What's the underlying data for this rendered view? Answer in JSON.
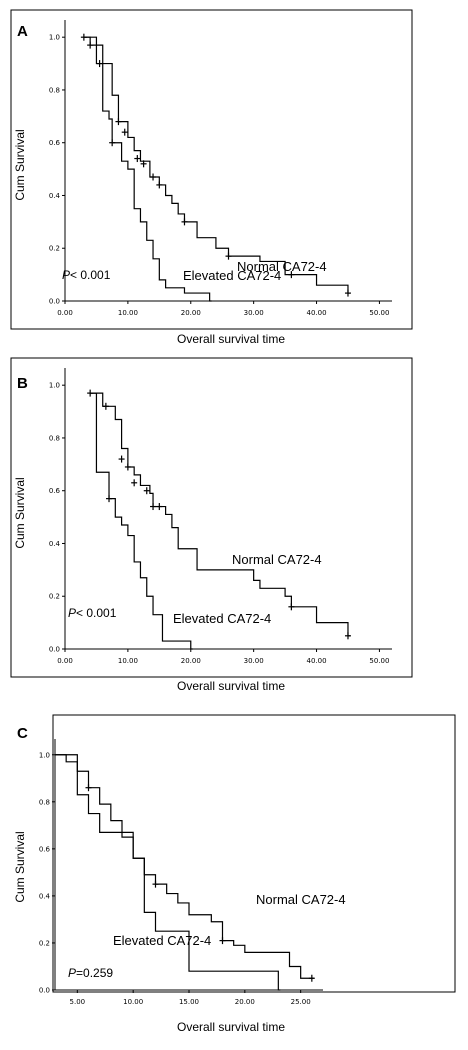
{
  "chart_data": [
    {
      "type": "line",
      "panel_label": "A",
      "xlabel": "Overall survival time",
      "ylabel": "Cum Survival",
      "xlim": [
        0,
        52
      ],
      "ylim": [
        0,
        1.05
      ],
      "x_ticks": [
        0,
        10,
        20,
        30,
        40,
        50
      ],
      "x_tick_labels": [
        "0.00",
        "10.00",
        "20.00",
        "30.00",
        "40.00",
        "50.00"
      ],
      "y_ticks": [
        0,
        0.2,
        0.4,
        0.6,
        0.8,
        1.0
      ],
      "y_tick_labels": [
        "0.0",
        "0.2",
        "0.4",
        "0.6",
        "0.8",
        "1.0"
      ],
      "p_value": {
        "italic": "P",
        "text": "< 0.001"
      },
      "series": [
        {
          "name": "Normal CA72-4",
          "steps": [
            [
              3,
              1.0
            ],
            [
              4,
              0.97
            ],
            [
              6,
              0.9
            ],
            [
              7.5,
              0.78
            ],
            [
              8.5,
              0.68
            ],
            [
              10,
              0.62
            ],
            [
              11,
              0.57
            ],
            [
              12,
              0.53
            ],
            [
              13.5,
              0.47
            ],
            [
              15,
              0.44
            ],
            [
              16,
              0.4
            ],
            [
              17,
              0.37
            ],
            [
              18,
              0.33
            ],
            [
              19,
              0.3
            ],
            [
              21,
              0.24
            ],
            [
              24,
              0.2
            ],
            [
              26,
              0.17
            ],
            [
              31,
              0.15
            ],
            [
              35,
              0.1
            ],
            [
              40,
              0.06
            ],
            [
              45,
              0.03
            ]
          ],
          "censored": [
            [
              3,
              1.0
            ],
            [
              5.5,
              0.9
            ],
            [
              8.5,
              0.68
            ],
            [
              9.5,
              0.64
            ],
            [
              11.5,
              0.54
            ],
            [
              12.5,
              0.52
            ],
            [
              14,
              0.47
            ],
            [
              15,
              0.44
            ],
            [
              19,
              0.3
            ],
            [
              26,
              0.17
            ],
            [
              36,
              0.1
            ],
            [
              45,
              0.03
            ]
          ]
        },
        {
          "name": "Elevated CA72-4",
          "steps": [
            [
              3,
              1.0
            ],
            [
              5,
              0.9
            ],
            [
              6,
              0.72
            ],
            [
              7,
              0.69
            ],
            [
              7.5,
              0.6
            ],
            [
              9,
              0.53
            ],
            [
              10,
              0.5
            ],
            [
              11,
              0.35
            ],
            [
              12,
              0.3
            ],
            [
              13,
              0.23
            ],
            [
              14,
              0.16
            ],
            [
              15,
              0.08
            ],
            [
              16,
              0.05
            ],
            [
              19,
              0.03
            ],
            [
              23,
              0.0
            ]
          ],
          "censored": [
            [
              4,
              0.97
            ],
            [
              7.5,
              0.6
            ]
          ]
        }
      ]
    },
    {
      "type": "line",
      "panel_label": "B",
      "xlabel": "Overall survival time",
      "ylabel": "Cum Survival",
      "xlim": [
        0,
        52
      ],
      "ylim": [
        0,
        1.05
      ],
      "x_ticks": [
        0,
        10,
        20,
        30,
        40,
        50
      ],
      "x_tick_labels": [
        "0.00",
        "10.00",
        "20.00",
        "30.00",
        "40.00",
        "50.00"
      ],
      "y_ticks": [
        0,
        0.2,
        0.4,
        0.6,
        0.8,
        1.0
      ],
      "y_tick_labels": [
        "0.0",
        "0.2",
        "0.4",
        "0.6",
        "0.8",
        "1.0"
      ],
      "p_value": {
        "italic": "P",
        "text": "< 0.001"
      },
      "series": [
        {
          "name": "Normal CA72-4",
          "steps": [
            [
              4,
              0.97
            ],
            [
              6,
              0.92
            ],
            [
              8,
              0.87
            ],
            [
              9,
              0.76
            ],
            [
              10,
              0.69
            ],
            [
              11,
              0.66
            ],
            [
              12,
              0.62
            ],
            [
              13.5,
              0.59
            ],
            [
              14,
              0.54
            ],
            [
              16,
              0.51
            ],
            [
              17,
              0.46
            ],
            [
              18,
              0.38
            ],
            [
              21,
              0.3
            ],
            [
              30,
              0.26
            ],
            [
              31,
              0.23
            ],
            [
              35,
              0.2
            ],
            [
              36,
              0.16
            ],
            [
              40,
              0.1
            ],
            [
              45,
              0.05
            ]
          ],
          "censored": [
            [
              4,
              0.97
            ],
            [
              6.5,
              0.92
            ],
            [
              9,
              0.72
            ],
            [
              10,
              0.69
            ],
            [
              11,
              0.63
            ],
            [
              13,
              0.6
            ],
            [
              14,
              0.54
            ],
            [
              15,
              0.54
            ],
            [
              36,
              0.16
            ],
            [
              45,
              0.05
            ]
          ]
        },
        {
          "name": "Elevated CA72-4",
          "steps": [
            [
              4,
              0.97
            ],
            [
              5,
              0.67
            ],
            [
              7,
              0.57
            ],
            [
              8,
              0.5
            ],
            [
              9,
              0.47
            ],
            [
              10,
              0.43
            ],
            [
              11,
              0.33
            ],
            [
              12,
              0.27
            ],
            [
              13,
              0.2
            ],
            [
              14,
              0.13
            ],
            [
              15.5,
              0.03
            ],
            [
              20,
              0.0
            ]
          ],
          "censored": [
            [
              7,
              0.57
            ]
          ]
        }
      ]
    },
    {
      "type": "line",
      "panel_label": "C",
      "xlabel": "Overall survival time",
      "ylabel": "Cum Survival",
      "xlim": [
        3,
        27
      ],
      "ylim": [
        0,
        1.05
      ],
      "x_ticks": [
        5,
        10,
        15,
        20,
        25
      ],
      "x_tick_labels": [
        "5.00",
        "10.00",
        "15.00",
        "20.00",
        "25.00"
      ],
      "y_ticks": [
        0,
        0.2,
        0.4,
        0.6,
        0.8,
        1.0
      ],
      "y_tick_labels": [
        "0.0",
        "0.2",
        "0.4",
        "0.6",
        "0.8",
        "1.0"
      ],
      "p_value": {
        "italic": "P",
        "text": "=0.259"
      },
      "series": [
        {
          "name": "Normal CA72-4",
          "steps": [
            [
              3,
              1.0
            ],
            [
              4,
              0.97
            ],
            [
              5,
              0.93
            ],
            [
              6,
              0.86
            ],
            [
              7,
              0.79
            ],
            [
              8,
              0.72
            ],
            [
              9,
              0.65
            ],
            [
              10,
              0.56
            ],
            [
              11,
              0.49
            ],
            [
              12,
              0.45
            ],
            [
              13,
              0.41
            ],
            [
              14,
              0.37
            ],
            [
              15,
              0.32
            ],
            [
              17,
              0.29
            ],
            [
              18,
              0.21
            ],
            [
              19,
              0.19
            ],
            [
              20,
              0.16
            ],
            [
              24,
              0.1
            ],
            [
              25,
              0.05
            ],
            [
              26,
              0.05
            ]
          ],
          "censored": [
            [
              6,
              0.86
            ],
            [
              12,
              0.45
            ],
            [
              18,
              0.21
            ],
            [
              26,
              0.05
            ]
          ]
        },
        {
          "name": "Elevated CA72-4",
          "steps": [
            [
              3,
              1.0
            ],
            [
              5,
              0.83
            ],
            [
              6,
              0.75
            ],
            [
              7,
              0.67
            ],
            [
              10,
              0.56
            ],
            [
              11,
              0.33
            ],
            [
              12,
              0.25
            ],
            [
              15,
              0.08
            ],
            [
              23,
              0.0
            ]
          ],
          "censored": []
        }
      ]
    }
  ]
}
